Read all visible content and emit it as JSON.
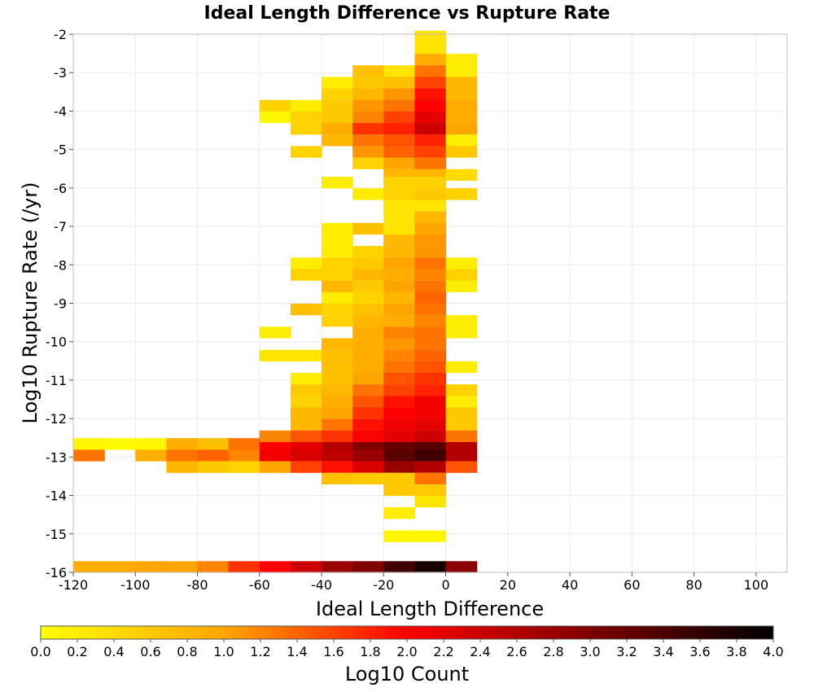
{
  "chart_data": {
    "type": "heatmap",
    "title": "Ideal Length Difference vs Rupture Rate",
    "xlabel": "Ideal Length Difference",
    "ylabel": "Log10 Rupture Rate (/yr)",
    "colorbar_label": "Log10 Count",
    "xlim": [
      -120,
      110
    ],
    "ylim": [
      -16,
      -2
    ],
    "x_ticks": [
      "-120",
      "-100",
      "-80",
      "-60",
      "-40",
      "-20",
      "0",
      "20",
      "40",
      "60",
      "80",
      "100"
    ],
    "y_ticks": [
      "-2",
      "-3",
      "-4",
      "-5",
      "-6",
      "-7",
      "-8",
      "-9",
      "-10",
      "-11",
      "-12",
      "-13",
      "-14",
      "-15",
      "-16"
    ],
    "colorbar_ticks": [
      "0.0",
      "0.2",
      "0.4",
      "0.6",
      "0.8",
      "1.0",
      "1.2",
      "1.4",
      "1.6",
      "1.8",
      "2.0",
      "2.2",
      "2.4",
      "2.6",
      "2.8",
      "3.0",
      "3.2",
      "3.4",
      "3.6",
      "3.8",
      "4.0"
    ],
    "color_range": [
      0,
      4
    ],
    "colorscale": [
      "#ffff00",
      "#ffa500",
      "#ff0000",
      "#7f0000",
      "#000000"
    ],
    "grid": true,
    "bin_width": 10,
    "bin_height": 0.29,
    "bins": [
      [
        -120,
        -12.8,
        0.1
      ],
      [
        -110,
        -12.8,
        0.05
      ],
      [
        -100,
        -12.8,
        0.1
      ],
      [
        -90,
        -12.8,
        0.9
      ],
      [
        -80,
        -12.8,
        0.7
      ],
      [
        -70,
        -12.8,
        1.3
      ],
      [
        -60,
        -12.8,
        2.0
      ],
      [
        -50,
        -12.8,
        2.2
      ],
      [
        -40,
        -12.8,
        2.6
      ],
      [
        -30,
        -12.8,
        3.0
      ],
      [
        -20,
        -12.8,
        3.2
      ],
      [
        -10,
        -12.8,
        3.3
      ],
      [
        0,
        -12.8,
        2.6
      ],
      [
        -120,
        -13.1,
        1.3
      ],
      [
        -100,
        -13.1,
        0.9
      ],
      [
        -90,
        -13.1,
        1.3
      ],
      [
        -80,
        -13.1,
        1.4
      ],
      [
        -70,
        -13.1,
        1.2
      ],
      [
        -60,
        -13.1,
        2.1
      ],
      [
        -50,
        -13.1,
        2.3
      ],
      [
        -40,
        -13.1,
        2.5
      ],
      [
        -30,
        -13.1,
        2.8
      ],
      [
        -20,
        -13.1,
        3.3
      ],
      [
        -10,
        -13.1,
        3.5
      ],
      [
        0,
        -13.1,
        2.6
      ],
      [
        -90,
        -13.4,
        0.8
      ],
      [
        -80,
        -13.4,
        0.6
      ],
      [
        -70,
        -13.4,
        0.5
      ],
      [
        -60,
        -13.4,
        1.0
      ],
      [
        -50,
        -13.4,
        1.6
      ],
      [
        -40,
        -13.4,
        1.9
      ],
      [
        -30,
        -13.4,
        2.3
      ],
      [
        -20,
        -13.4,
        2.8
      ],
      [
        -10,
        -13.4,
        2.6
      ],
      [
        0,
        -13.4,
        1.5
      ],
      [
        -40,
        -13.7,
        0.7
      ],
      [
        -30,
        -13.7,
        0.6
      ],
      [
        -20,
        -13.7,
        0.6
      ],
      [
        -10,
        -13.7,
        1.3
      ],
      [
        -20,
        -14.0,
        0.6
      ],
      [
        -10,
        -14.0,
        0.6
      ],
      [
        -10,
        -14.3,
        0.3
      ],
      [
        -20,
        -14.6,
        0.2
      ],
      [
        -20,
        -15.2,
        0.1
      ],
      [
        -10,
        -15.2,
        0.1
      ],
      [
        -120,
        -16.0,
        0.9
      ],
      [
        -110,
        -16.0,
        0.9
      ],
      [
        -100,
        -16.0,
        1.0
      ],
      [
        -90,
        -16.0,
        1.0
      ],
      [
        -80,
        -16.0,
        1.2
      ],
      [
        -70,
        -16.0,
        1.7
      ],
      [
        -60,
        -16.0,
        2.0
      ],
      [
        -50,
        -16.0,
        2.4
      ],
      [
        -40,
        -16.0,
        2.8
      ],
      [
        -30,
        -16.0,
        3.0
      ],
      [
        -20,
        -16.0,
        3.5
      ],
      [
        -10,
        -16.0,
        3.8
      ],
      [
        0,
        -16.0,
        2.9
      ],
      [
        -10,
        -2.2,
        0.3
      ],
      [
        -10,
        -2.5,
        0.3
      ],
      [
        -10,
        -2.8,
        0.9
      ],
      [
        0,
        -2.8,
        0.2
      ],
      [
        -30,
        -3.1,
        0.7
      ],
      [
        -20,
        -3.1,
        0.3
      ],
      [
        -10,
        -3.1,
        1.3
      ],
      [
        0,
        -3.1,
        0.2
      ],
      [
        -40,
        -3.4,
        0.2
      ],
      [
        -30,
        -3.4,
        0.6
      ],
      [
        -20,
        -3.4,
        0.7
      ],
      [
        -10,
        -3.4,
        1.6
      ],
      [
        0,
        -3.4,
        0.8
      ],
      [
        -40,
        -3.7,
        0.5
      ],
      [
        -30,
        -3.7,
        0.8
      ],
      [
        -20,
        -3.7,
        1.1
      ],
      [
        -10,
        -3.7,
        1.9
      ],
      [
        0,
        -3.7,
        0.8
      ],
      [
        -60,
        -4.0,
        0.5
      ],
      [
        -50,
        -4.0,
        0.2
      ],
      [
        -40,
        -4.0,
        0.6
      ],
      [
        -30,
        -4.0,
        1.1
      ],
      [
        -20,
        -4.0,
        1.3
      ],
      [
        -10,
        -4.0,
        2.0
      ],
      [
        0,
        -4.0,
        0.9
      ],
      [
        -60,
        -4.3,
        0.1
      ],
      [
        -50,
        -4.3,
        0.5
      ],
      [
        -40,
        -4.3,
        0.6
      ],
      [
        -30,
        -4.3,
        1.2
      ],
      [
        -20,
        -4.3,
        1.6
      ],
      [
        -10,
        -4.3,
        2.2
      ],
      [
        0,
        -4.3,
        0.9
      ],
      [
        -50,
        -4.6,
        0.5
      ],
      [
        -40,
        -4.6,
        0.9
      ],
      [
        -30,
        -4.6,
        1.7
      ],
      [
        -20,
        -4.6,
        1.8
      ],
      [
        -10,
        -4.6,
        2.4
      ],
      [
        0,
        -4.6,
        1.0
      ],
      [
        -40,
        -4.9,
        0.8
      ],
      [
        -30,
        -4.9,
        1.3
      ],
      [
        -20,
        -4.9,
        1.5
      ],
      [
        -10,
        -4.9,
        1.8
      ],
      [
        0,
        -4.9,
        0.2
      ],
      [
        -50,
        -5.2,
        0.5
      ],
      [
        -30,
        -5.2,
        1.1
      ],
      [
        -20,
        -5.2,
        1.4
      ],
      [
        -10,
        -5.2,
        1.6
      ],
      [
        0,
        -5.2,
        0.6
      ],
      [
        -30,
        -5.5,
        0.5
      ],
      [
        -20,
        -5.5,
        1.0
      ],
      [
        -10,
        -5.5,
        1.3
      ],
      [
        -20,
        -5.8,
        0.8
      ],
      [
        -10,
        -5.8,
        0.8
      ],
      [
        0,
        -5.8,
        0.4
      ],
      [
        -40,
        -6.0,
        0.2
      ],
      [
        -20,
        -6.0,
        0.5
      ],
      [
        -10,
        -6.0,
        0.5
      ],
      [
        -30,
        -6.3,
        0.2
      ],
      [
        -20,
        -6.3,
        0.5
      ],
      [
        -10,
        -6.3,
        0.6
      ],
      [
        0,
        -6.3,
        0.5
      ],
      [
        -20,
        -6.6,
        0.3
      ],
      [
        -10,
        -6.6,
        0.3
      ],
      [
        -20,
        -6.9,
        0.3
      ],
      [
        -10,
        -6.9,
        0.8
      ],
      [
        -40,
        -7.2,
        0.2
      ],
      [
        -30,
        -7.2,
        0.7
      ],
      [
        -20,
        -7.2,
        0.3
      ],
      [
        -10,
        -7.2,
        1.0
      ],
      [
        -40,
        -7.5,
        0.2
      ],
      [
        -20,
        -7.5,
        0.8
      ],
      [
        -10,
        -7.5,
        1.1
      ],
      [
        -40,
        -7.8,
        0.2
      ],
      [
        -30,
        -7.8,
        0.5
      ],
      [
        -20,
        -7.8,
        0.8
      ],
      [
        -10,
        -7.8,
        1.1
      ],
      [
        -50,
        -8.1,
        0.2
      ],
      [
        -40,
        -8.1,
        0.5
      ],
      [
        -30,
        -8.1,
        0.6
      ],
      [
        -20,
        -8.1,
        1.0
      ],
      [
        -10,
        -8.1,
        1.3
      ],
      [
        0,
        -8.1,
        0.2
      ],
      [
        -50,
        -8.4,
        0.5
      ],
      [
        -40,
        -8.4,
        0.5
      ],
      [
        -30,
        -8.4,
        0.8
      ],
      [
        -20,
        -8.4,
        0.9
      ],
      [
        -10,
        -8.4,
        1.2
      ],
      [
        0,
        -8.4,
        0.5
      ],
      [
        -40,
        -8.7,
        0.8
      ],
      [
        -30,
        -8.7,
        0.6
      ],
      [
        -20,
        -8.7,
        1.0
      ],
      [
        -10,
        -8.7,
        1.3
      ],
      [
        0,
        -8.7,
        0.2
      ],
      [
        -40,
        -9.0,
        0.2
      ],
      [
        -30,
        -9.0,
        0.5
      ],
      [
        -20,
        -9.0,
        0.8
      ],
      [
        -10,
        -9.0,
        1.4
      ],
      [
        -50,
        -9.3,
        0.7
      ],
      [
        -40,
        -9.3,
        0.5
      ],
      [
        -30,
        -9.3,
        0.7
      ],
      [
        -20,
        -9.3,
        1.0
      ],
      [
        -10,
        -9.3,
        1.3
      ],
      [
        -40,
        -9.6,
        0.5
      ],
      [
        -30,
        -9.6,
        0.8
      ],
      [
        -20,
        -9.6,
        0.9
      ],
      [
        -10,
        -9.6,
        1.2
      ],
      [
        0,
        -9.6,
        0.2
      ],
      [
        -60,
        -9.9,
        0.2
      ],
      [
        -30,
        -9.9,
        0.9
      ],
      [
        -20,
        -9.9,
        1.2
      ],
      [
        -10,
        -9.9,
        1.3
      ],
      [
        0,
        -9.9,
        0.2
      ],
      [
        -40,
        -10.2,
        0.8
      ],
      [
        -30,
        -10.2,
        0.9
      ],
      [
        -20,
        -10.2,
        1.1
      ],
      [
        -10,
        -10.2,
        1.3
      ],
      [
        -60,
        -10.5,
        0.3
      ],
      [
        -50,
        -10.5,
        0.3
      ],
      [
        -40,
        -10.5,
        0.7
      ],
      [
        -30,
        -10.5,
        0.9
      ],
      [
        -20,
        -10.5,
        1.2
      ],
      [
        -10,
        -10.5,
        1.4
      ],
      [
        -40,
        -10.8,
        0.7
      ],
      [
        -30,
        -10.8,
        0.9
      ],
      [
        -20,
        -10.8,
        1.3
      ],
      [
        -10,
        -10.8,
        1.5
      ],
      [
        0,
        -10.8,
        0.2
      ],
      [
        -50,
        -11.1,
        0.2
      ],
      [
        -40,
        -11.1,
        0.7
      ],
      [
        -30,
        -11.1,
        1.0
      ],
      [
        -20,
        -11.1,
        1.5
      ],
      [
        -10,
        -11.1,
        1.7
      ],
      [
        -50,
        -11.4,
        0.6
      ],
      [
        -40,
        -11.4,
        0.8
      ],
      [
        -30,
        -11.4,
        1.3
      ],
      [
        -20,
        -11.4,
        1.6
      ],
      [
        -10,
        -11.4,
        1.8
      ],
      [
        0,
        -11.4,
        0.5
      ],
      [
        -50,
        -11.7,
        0.5
      ],
      [
        -40,
        -11.7,
        0.9
      ],
      [
        -30,
        -11.7,
        1.5
      ],
      [
        -20,
        -11.7,
        1.9
      ],
      [
        -10,
        -11.7,
        2.1
      ],
      [
        0,
        -11.7,
        0.2
      ],
      [
        -50,
        -12.0,
        0.8
      ],
      [
        -40,
        -12.0,
        1.0
      ],
      [
        -30,
        -12.0,
        1.7
      ],
      [
        -20,
        -12.0,
        2.0
      ],
      [
        -10,
        -12.0,
        2.1
      ],
      [
        0,
        -12.0,
        0.6
      ],
      [
        -50,
        -12.3,
        0.8
      ],
      [
        -40,
        -12.3,
        1.3
      ],
      [
        -30,
        -12.3,
        1.9
      ],
      [
        -20,
        -12.3,
        2.1
      ],
      [
        -10,
        -12.3,
        2.2
      ],
      [
        0,
        -12.3,
        0.6
      ],
      [
        -60,
        -12.6,
        1.2
      ],
      [
        -50,
        -12.6,
        1.5
      ],
      [
        -40,
        -12.6,
        1.7
      ],
      [
        -30,
        -12.6,
        2.0
      ],
      [
        -20,
        -12.6,
        2.2
      ],
      [
        -10,
        -12.6,
        2.4
      ],
      [
        0,
        -12.6,
        1.3
      ]
    ]
  }
}
